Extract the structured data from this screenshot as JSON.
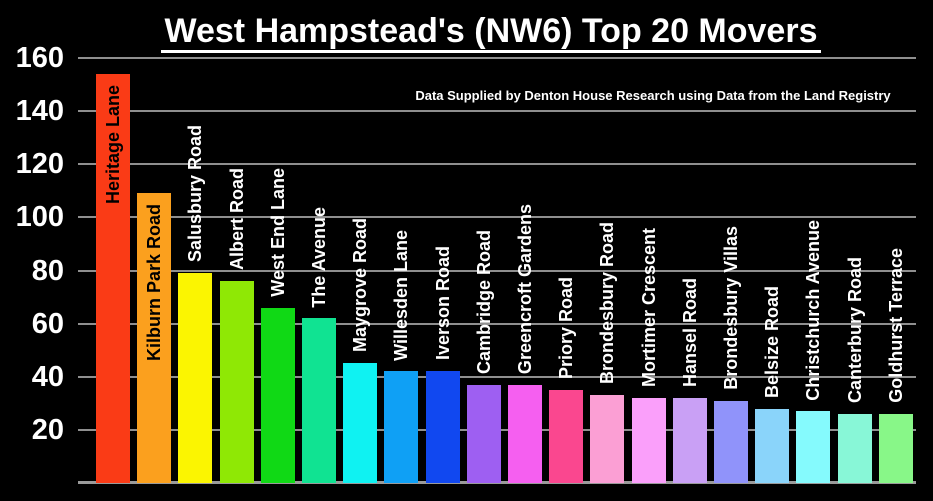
{
  "title": "West Hampstead's (NW6) Top 20 Movers",
  "subtitle": "Data Supplied by Denton House Research using Data from the Land Registry",
  "colors": {
    "background": "#000000",
    "text": "#ffffff",
    "gridline": "#8f8f8f",
    "label_inside": "#000000",
    "label_outside": "#ffffff"
  },
  "chart_data": {
    "type": "bar",
    "title": "West Hampstead's (NW6) Top 20 Movers",
    "subtitle": "Data Supplied by Denton House Research using Data from the Land Registry",
    "categories": [
      "Heritage Lane",
      "Kilburn Park Road",
      "Salusbury Road",
      "Albert Road",
      "West End Lane",
      "The Avenue",
      "Maygrove Road",
      "Willesden Lane",
      "Iverson Road",
      "Cambridge Road",
      "Greencroft Gardens",
      "Priory Road",
      "Brondesbury Road",
      "Mortimer Crescent",
      "Hansel Road",
      "Brondesbury Villas",
      "Belsize Road",
      "Christchurch Avenue",
      "Canterbury Road",
      "Goldhurst Terrace"
    ],
    "values": [
      154,
      109,
      79,
      76,
      66,
      62,
      45,
      42,
      42,
      37,
      37,
      35,
      33,
      32,
      32,
      31,
      28,
      27,
      26,
      26
    ],
    "bar_colors": [
      "#fa3b16",
      "#fba01e",
      "#fbf501",
      "#8fe805",
      "#10d915",
      "#10e392",
      "#0ff2f2",
      "#0fa0f5",
      "#1148f0",
      "#9e5ff2",
      "#f55ff0",
      "#fa478f",
      "#fb9fd4",
      "#fa9ffa",
      "#c9a0f5",
      "#9093fa",
      "#8ad4fa",
      "#85fafd",
      "#88f7d7",
      "#88f788"
    ],
    "labels_inside_count": 2,
    "label_color_inside": "#000000",
    "label_color_outside": "#ffffff",
    "xlabel": "",
    "ylabel": "",
    "ylim": [
      0,
      160
    ],
    "yticks": [
      20,
      40,
      60,
      80,
      100,
      120,
      140,
      160
    ],
    "grid": true,
    "legend": false,
    "background": "#000000"
  }
}
